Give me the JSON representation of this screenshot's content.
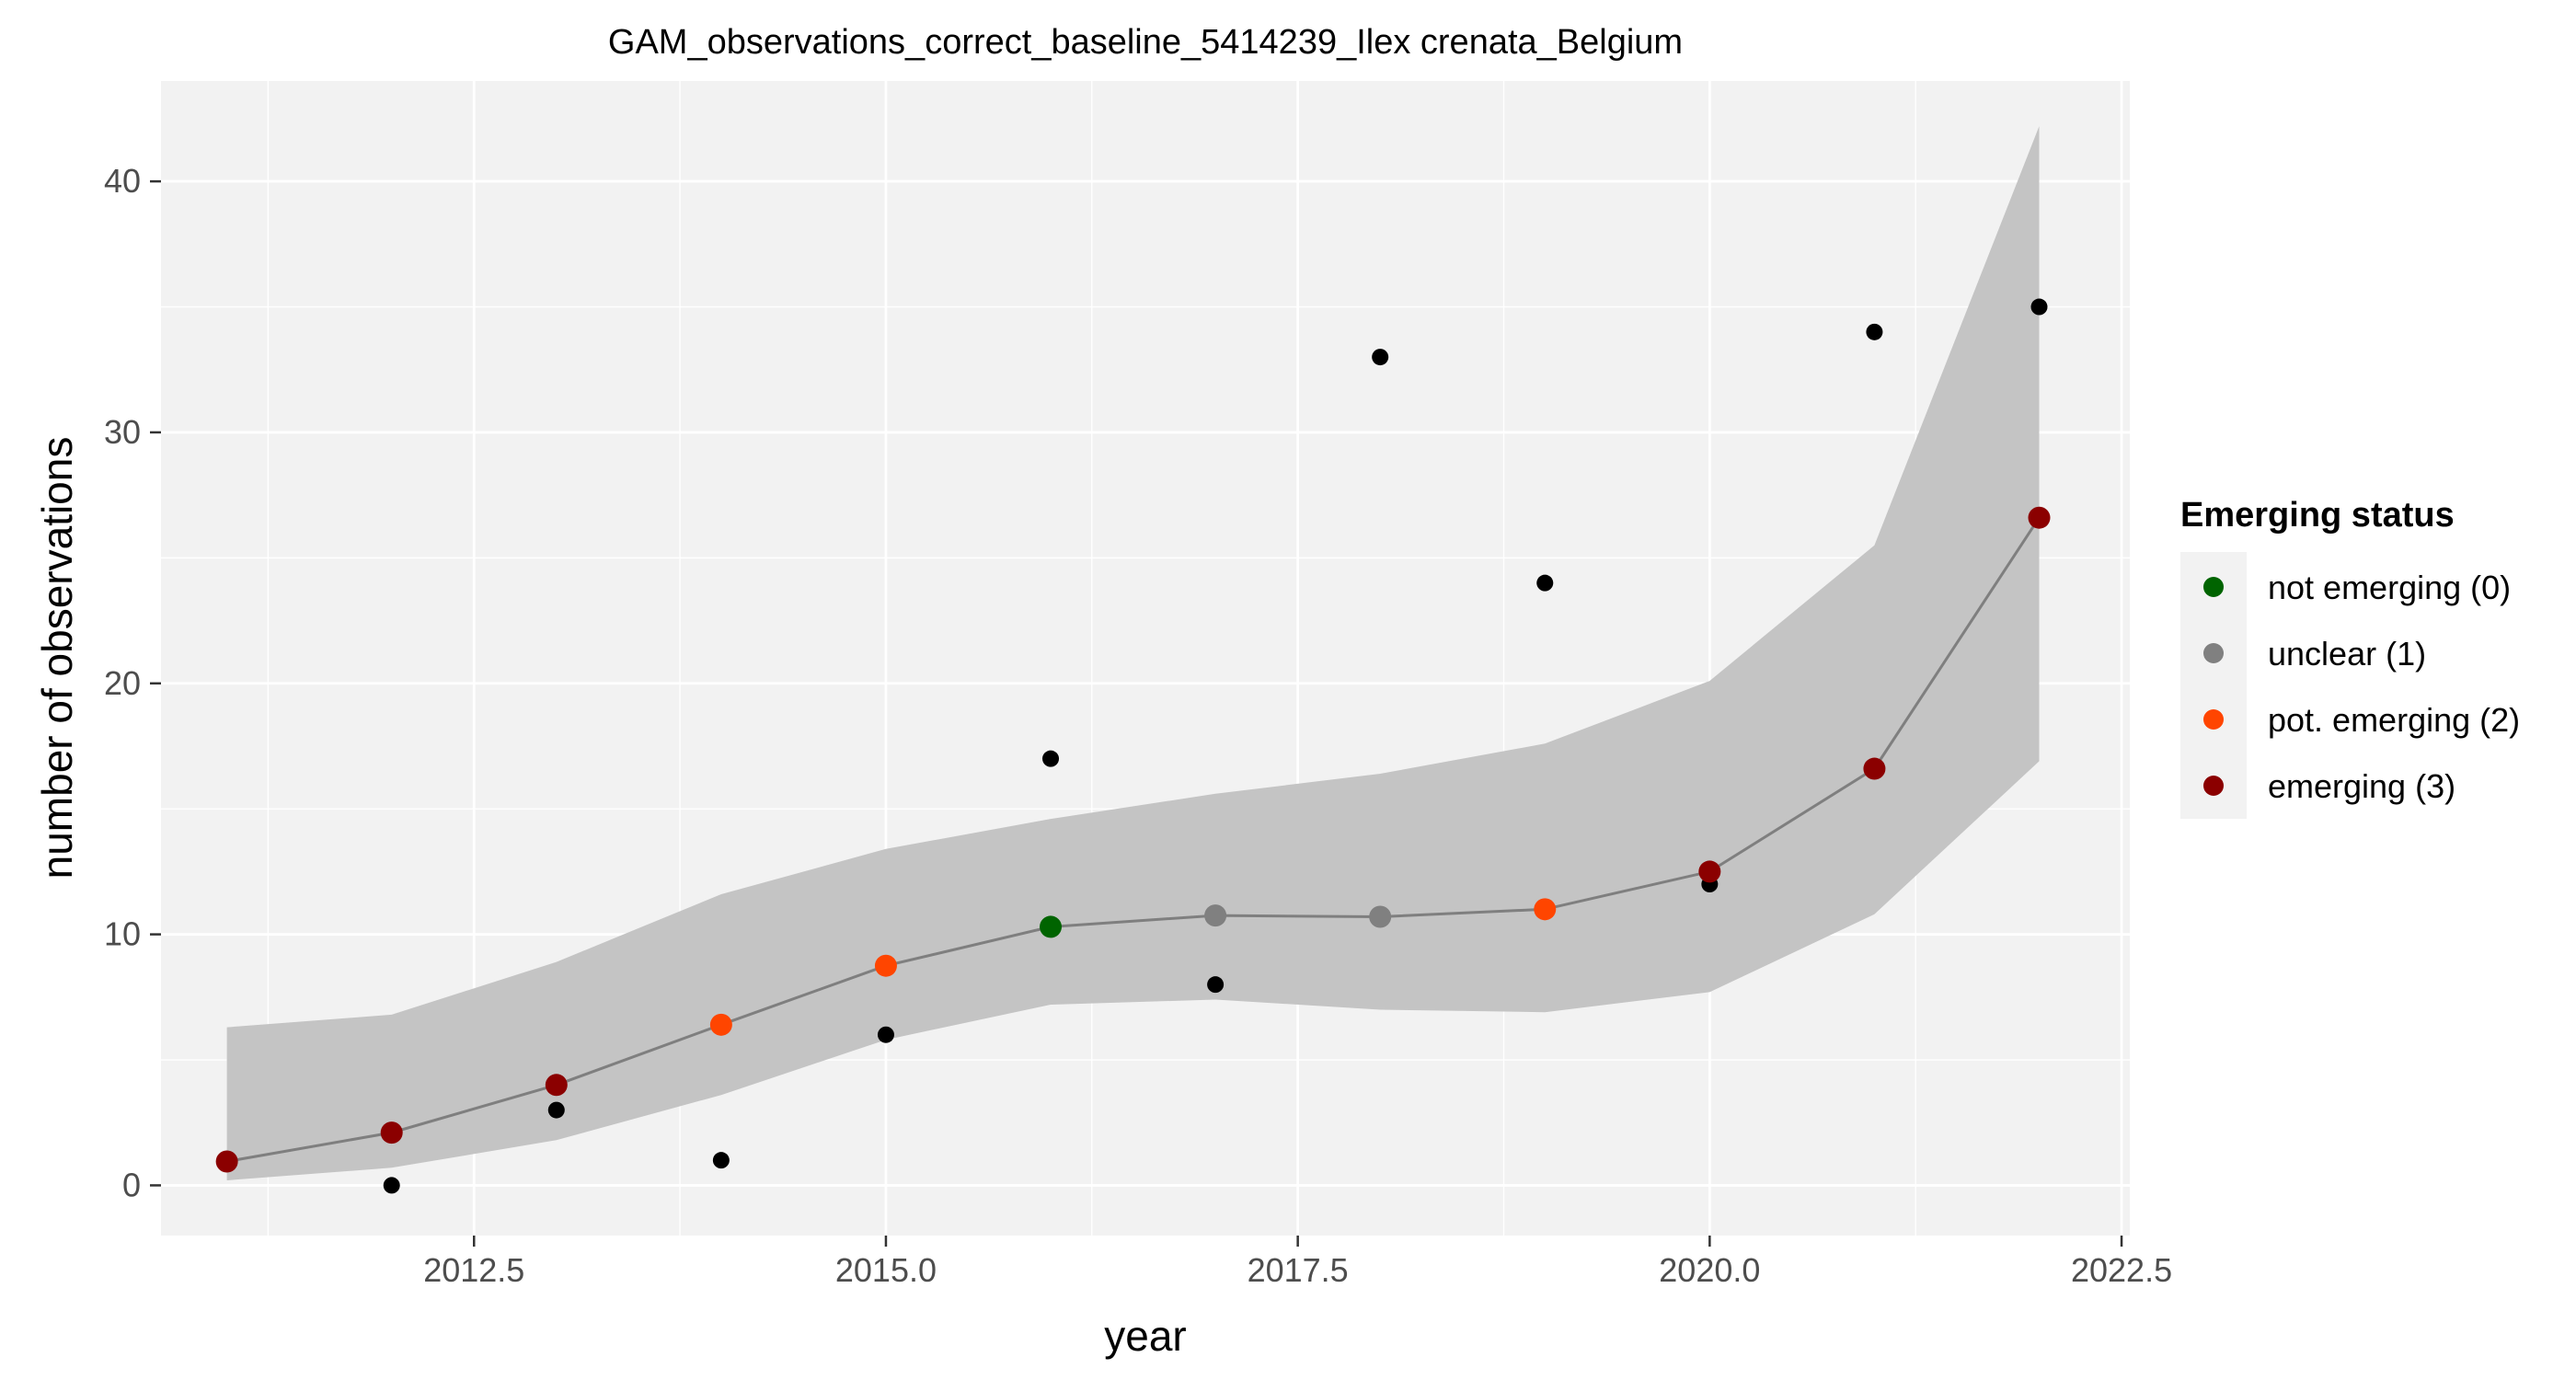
{
  "chart_data": {
    "type": "scatter",
    "title": "GAM_observations_correct_baseline_5414239_Ilex crenata_Belgium",
    "xlabel": "year",
    "ylabel": "number of observations",
    "xlim": [
      2010.6,
      2022.55
    ],
    "ylim": [
      -2,
      44
    ],
    "x_ticks": [
      2012.5,
      2015.0,
      2017.5,
      2020.0,
      2022.5
    ],
    "x_tick_labels": [
      "2012.5",
      "2015.0",
      "2017.5",
      "2020.0",
      "2022.5"
    ],
    "y_ticks": [
      0,
      10,
      20,
      30,
      40
    ],
    "y_tick_labels": [
      "0",
      "10",
      "20",
      "30",
      "40"
    ],
    "grid": true,
    "legend_position": "right",
    "legend": {
      "title": "Emerging status",
      "entries": [
        {
          "label": "not emerging (0)",
          "color": "#006400"
        },
        {
          "label": "unclear (1)",
          "color": "#808080"
        },
        {
          "label": "pot. emerging (2)",
          "color": "#ff4500"
        },
        {
          "label": "emerging (3)",
          "color": "#8b0000"
        }
      ]
    },
    "observed": {
      "x": [
        2011,
        2012,
        2013,
        2014,
        2015,
        2016,
        2017,
        2018,
        2019,
        2020,
        2021,
        2022
      ],
      "y": [
        1,
        0,
        3,
        1,
        6,
        17,
        8,
        33,
        24,
        12,
        34,
        35
      ]
    },
    "fit": {
      "x": [
        2011,
        2012,
        2013,
        2014,
        2015,
        2016,
        2017,
        2018,
        2019,
        2020,
        2021,
        2022
      ],
      "y": [
        0.95,
        2.1,
        4.0,
        6.4,
        8.75,
        10.3,
        10.75,
        10.7,
        11.0,
        12.5,
        16.6,
        26.6
      ],
      "lower": [
        0.2,
        0.7,
        1.8,
        3.6,
        5.8,
        7.2,
        7.4,
        7.0,
        6.9,
        7.7,
        10.8,
        16.9
      ],
      "upper": [
        6.3,
        6.8,
        8.9,
        11.6,
        13.4,
        14.6,
        15.6,
        16.4,
        17.6,
        20.1,
        25.5,
        42.2
      ],
      "status": [
        3,
        3,
        3,
        2,
        2,
        0,
        1,
        1,
        2,
        3,
        3,
        3
      ]
    },
    "colors": {
      "panel_background": "#f2f2f2",
      "ribbon": "#c4c4c4",
      "fit_line": "#7f7f7f",
      "observed_points": "#000000"
    }
  }
}
